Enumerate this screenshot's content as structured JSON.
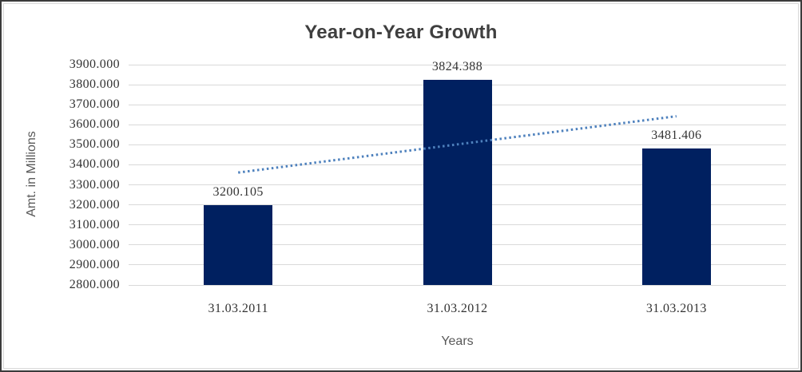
{
  "chart_data": {
    "type": "bar",
    "title": "Year-on-Year Growth",
    "xlabel": "Years",
    "ylabel": "Amt. in Millions",
    "categories": [
      "31.03.2011",
      "31.03.2012",
      "31.03.2013"
    ],
    "values": [
      3200.105,
      3824.388,
      3481.406
    ],
    "data_labels": [
      "3200.105",
      "3824.388",
      "3481.406"
    ],
    "ytick_labels": [
      "3900.000",
      "3800.000",
      "3700.000",
      "3600.000",
      "3500.000",
      "3400.000",
      "3300.000",
      "3200.000",
      "3100.000",
      "3000.000",
      "2900.000",
      "2800.000"
    ],
    "ylim": [
      2800,
      3900
    ],
    "ytick_step": 100,
    "grid": true,
    "legend": "none",
    "trendline": {
      "type": "linear",
      "style": "dotted",
      "endpoints_values": [
        3361.316,
        3642.617
      ]
    },
    "colors": {
      "bar": "#002060",
      "gridline": "#d9d9d9",
      "trendline": "#4e81bd",
      "title_text": "#3f3f3f",
      "tick_text": "#333333",
      "axis_title_text": "#595959",
      "chart_border": "#d9d9d9",
      "frame_border": "#3a3a3a"
    }
  }
}
